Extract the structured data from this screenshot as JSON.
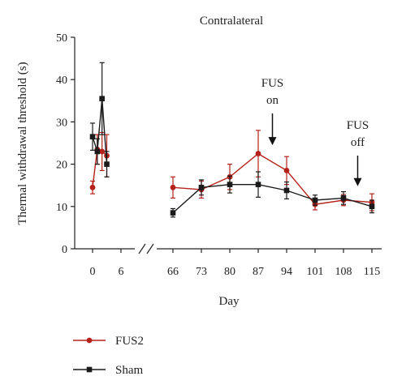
{
  "chart_data": {
    "type": "line",
    "title": "Contralateral",
    "xlabel": "Day",
    "ylabel": "Thermal withdrawal threshold (s)",
    "ylim": [
      0,
      50
    ],
    "yticks": [
      0,
      10,
      20,
      30,
      40,
      50
    ],
    "x_break": true,
    "xticks_left": [
      0,
      6
    ],
    "xticks_right": [
      66,
      73,
      80,
      87,
      94,
      101,
      108,
      115
    ],
    "series": [
      {
        "name": "FUS2",
        "color": "#b5221b",
        "marker": "circle",
        "points": [
          {
            "x": 0,
            "y": 14.5,
            "err": 1.5
          },
          {
            "x": 1,
            "y": 23.5,
            "err": 3.5
          },
          {
            "x": 2,
            "y": 23.0,
            "err": 4.5
          },
          {
            "x": 3,
            "y": 22.0,
            "err": 5.0
          },
          {
            "x": 66,
            "y": 14.5,
            "err": 2.5
          },
          {
            "x": 73,
            "y": 14.0,
            "err": 2.0
          },
          {
            "x": 80,
            "y": 17.0,
            "err": 3.0
          },
          {
            "x": 87,
            "y": 22.5,
            "err": 5.5
          },
          {
            "x": 94,
            "y": 18.5,
            "err": 3.3
          },
          {
            "x": 101,
            "y": 10.5,
            "err": 1.3
          },
          {
            "x": 108,
            "y": 11.5,
            "err": 1.3
          },
          {
            "x": 115,
            "y": 11.0,
            "err": 2.0
          }
        ]
      },
      {
        "name": "Sham",
        "color": "#1a1a1a",
        "marker": "square",
        "points": [
          {
            "x": 0,
            "y": 26.5,
            "err": 3.2
          },
          {
            "x": 1,
            "y": 23.0,
            "err": 3.0
          },
          {
            "x": 2,
            "y": 35.5,
            "err": 8.5
          },
          {
            "x": 3,
            "y": 20.0,
            "err": 3.0
          },
          {
            "x": 66,
            "y": 8.5,
            "err": 1.0
          },
          {
            "x": 73,
            "y": 14.5,
            "err": 1.8
          },
          {
            "x": 80,
            "y": 15.2,
            "err": 2.0
          },
          {
            "x": 87,
            "y": 15.2,
            "err": 3.0
          },
          {
            "x": 94,
            "y": 13.8,
            "err": 2.0
          },
          {
            "x": 101,
            "y": 11.5,
            "err": 1.2
          },
          {
            "x": 108,
            "y": 12.0,
            "err": 1.5
          },
          {
            "x": 115,
            "y": 10.0,
            "err": 1.5
          }
        ]
      }
    ],
    "annotations": [
      {
        "lines": [
          "FUS",
          "on"
        ],
        "x": 90.5,
        "arrow_tip_y": 24.5
      },
      {
        "lines": [
          "FUS",
          "off"
        ],
        "x": 111.5,
        "arrow_tip_y": 14.8
      }
    ],
    "legend": [
      {
        "label": "FUS2",
        "color": "#b5221b",
        "marker": "circle"
      },
      {
        "label": "Sham",
        "color": "#1a1a1a",
        "marker": "square"
      }
    ],
    "legend_position": "bottom-left"
  }
}
